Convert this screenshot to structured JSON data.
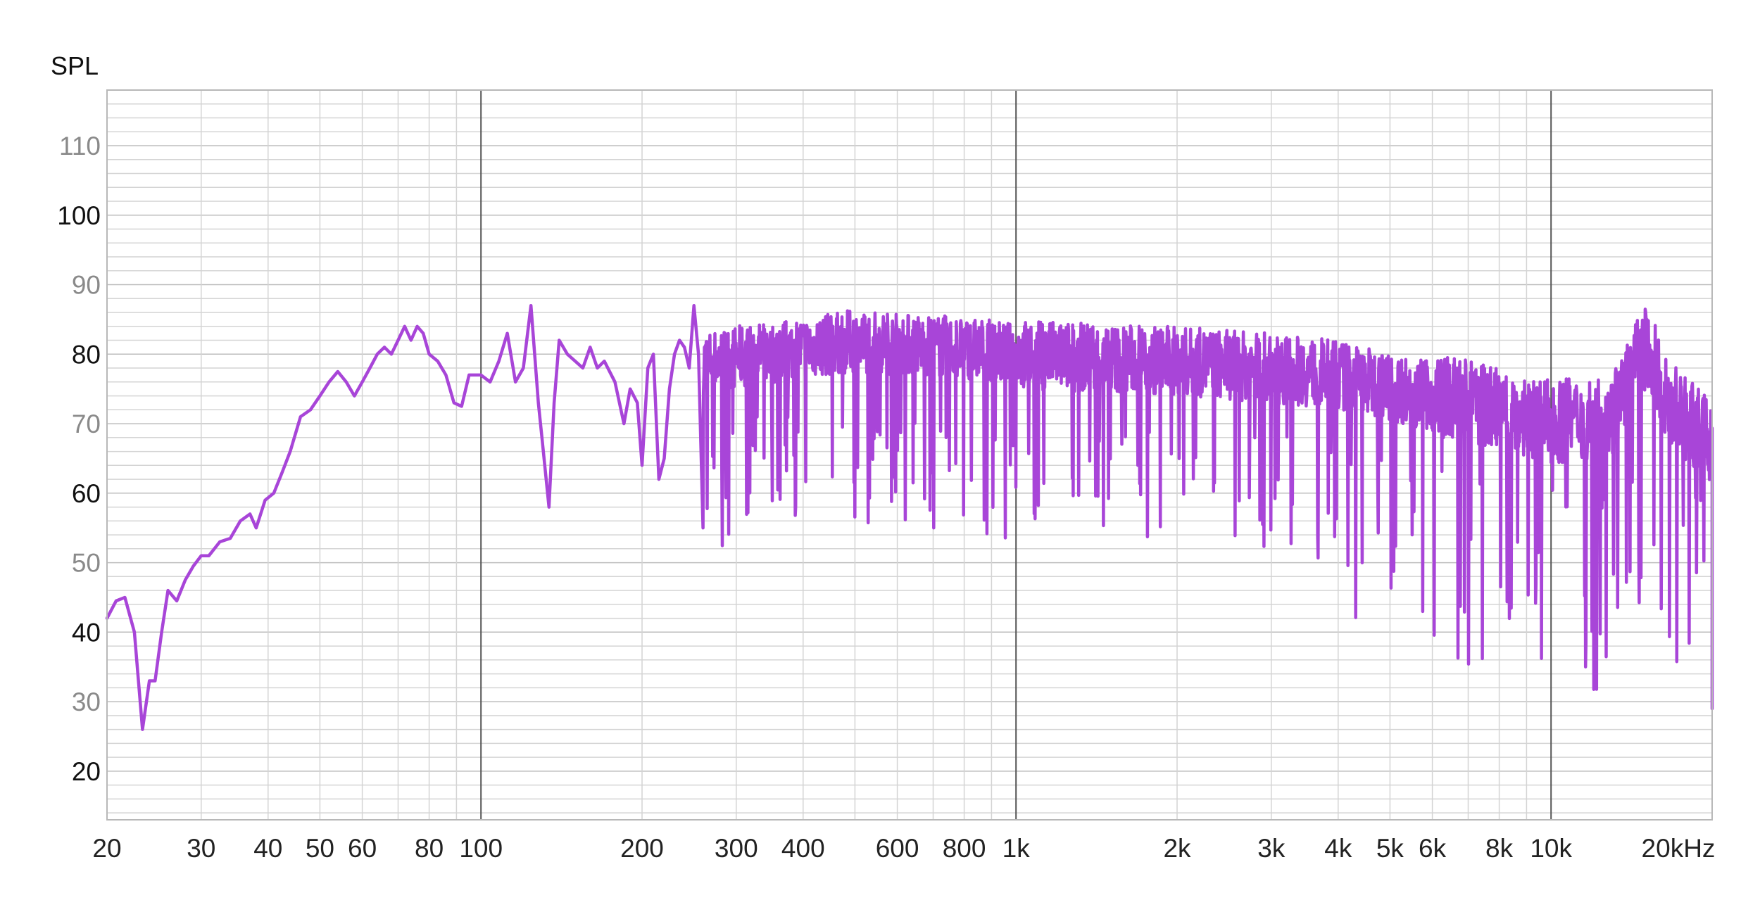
{
  "chart_data": {
    "type": "line",
    "title": "",
    "ylabel": "SPL",
    "xlabel": "",
    "xscale": "log",
    "xlim": [
      20,
      20000
    ],
    "ylim": [
      13,
      118
    ],
    "grid": true,
    "legend": "none",
    "y_ticks": [
      {
        "value": 110,
        "label": "110",
        "major": false
      },
      {
        "value": 100,
        "label": "100",
        "major": true
      },
      {
        "value": 90,
        "label": "90",
        "major": false
      },
      {
        "value": 80,
        "label": "80",
        "major": true
      },
      {
        "value": 70,
        "label": "70",
        "major": false
      },
      {
        "value": 60,
        "label": "60",
        "major": true
      },
      {
        "value": 50,
        "label": "50",
        "major": false
      },
      {
        "value": 40,
        "label": "40",
        "major": true
      },
      {
        "value": 30,
        "label": "30",
        "major": false
      },
      {
        "value": 20,
        "label": "20",
        "major": true
      }
    ],
    "x_ticks": [
      {
        "value": 20,
        "label": "20"
      },
      {
        "value": 30,
        "label": "30"
      },
      {
        "value": 40,
        "label": "40"
      },
      {
        "value": 50,
        "label": "50"
      },
      {
        "value": 60,
        "label": "60"
      },
      {
        "value": 80,
        "label": "80"
      },
      {
        "value": 100,
        "label": "100"
      },
      {
        "value": 200,
        "label": "200"
      },
      {
        "value": 300,
        "label": "300"
      },
      {
        "value": 400,
        "label": "400"
      },
      {
        "value": 600,
        "label": "600"
      },
      {
        "value": 800,
        "label": "800"
      },
      {
        "value": 1000,
        "label": "1k"
      },
      {
        "value": 2000,
        "label": "2k"
      },
      {
        "value": 3000,
        "label": "3k"
      },
      {
        "value": 4000,
        "label": "4k"
      },
      {
        "value": 5000,
        "label": "5k"
      },
      {
        "value": 6000,
        "label": "6k"
      },
      {
        "value": 8000,
        "label": "8k"
      },
      {
        "value": 10000,
        "label": "10k"
      },
      {
        "value": 20000,
        "label": "20kHz"
      }
    ],
    "colors": {
      "line": "#a845d8",
      "grid_minor": "#d4d4d4",
      "grid_major": "#bdbdbd",
      "grid_decade": "#555555",
      "frame": "#b8b8b8",
      "tick_major": "#111111",
      "tick_minor": "#8a8a8a"
    },
    "series": [
      {
        "x": [
          20,
          20.8,
          21.6,
          22.5,
          23.3,
          24.0,
          24.6,
          25.3,
          26.0,
          27.0,
          28.0,
          29.0,
          30.0,
          31.0,
          32.5,
          34.0,
          35.5,
          37.0,
          38.0,
          39.5,
          41.0,
          42.5,
          44.0,
          46.0,
          48.0,
          50.0,
          52.0,
          54.0,
          56.0,
          58.0,
          60.0,
          62.0,
          64.0,
          66.0,
          68.0,
          70.0,
          72.0,
          74.0,
          76.0,
          78.0,
          80.0,
          83.0,
          86.0,
          89.0,
          92.0,
          95.0,
          100,
          104,
          108,
          112,
          116,
          120,
          124,
          128,
          130,
          134,
          137,
          140,
          145,
          150,
          155,
          160,
          165,
          170,
          178,
          185,
          190,
          196,
          200,
          205,
          210,
          215,
          220,
          225,
          230,
          235,
          240,
          245,
          250,
          255,
          260
        ],
        "y": [
          42,
          44.5,
          45,
          40,
          26,
          33,
          33,
          40,
          46,
          44.5,
          47.5,
          49.5,
          51,
          51,
          53,
          53.5,
          56,
          57,
          55,
          59,
          60,
          63,
          66,
          71,
          72,
          74,
          76,
          77.5,
          76,
          74,
          76,
          78,
          80,
          81,
          80,
          82,
          84,
          82,
          84,
          83,
          80,
          79,
          77,
          73,
          72.5,
          77,
          77,
          76,
          79,
          83,
          76,
          78,
          87,
          73,
          68,
          58,
          73,
          82,
          80,
          79,
          78,
          81,
          78,
          79,
          76,
          70,
          75,
          73,
          64,
          78,
          80,
          62,
          65,
          75,
          80,
          82,
          81,
          78,
          87,
          80,
          55
        ]
      }
    ]
  }
}
